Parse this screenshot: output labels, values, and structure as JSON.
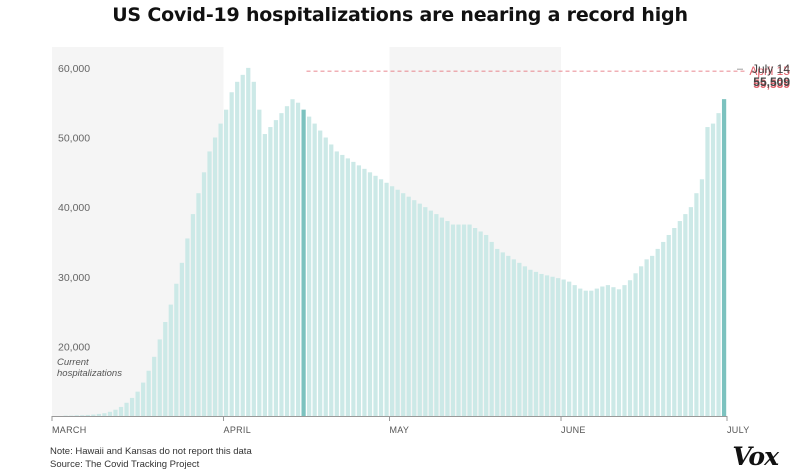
{
  "header": {
    "title": "US Covid-19 hospitalizations are nearing a record high"
  },
  "chart_data": {
    "type": "bar",
    "title": "US Covid-19 hospitalizations are nearing a record high",
    "ylabel": "Current hospitalizations",
    "ylim": [
      10000,
      63000
    ],
    "yticks": [
      20000,
      30000,
      40000,
      50000,
      60000
    ],
    "ytick_labels": [
      "20,000",
      "30,000",
      "40,000",
      "50,000",
      "60,000"
    ],
    "months": [
      "MARCH",
      "APRIL",
      "MAY",
      "JUNE",
      "JULY"
    ],
    "grid": false,
    "start_date": "2020-03-01",
    "values": [
      10000,
      10000,
      10050,
      10050,
      10100,
      10100,
      10150,
      10200,
      10300,
      10400,
      10600,
      10900,
      11300,
      11900,
      12600,
      13500,
      14800,
      16500,
      18500,
      21000,
      23500,
      26000,
      29000,
      32000,
      35500,
      39000,
      42000,
      45000,
      48000,
      50000,
      52000,
      54000,
      56500,
      58000,
      59000,
      60000,
      58000,
      54000,
      50500,
      51500,
      52500,
      53500,
      54500,
      55500,
      55000,
      54000,
      53000,
      52000,
      51000,
      50000,
      49000,
      48000,
      47500,
      47000,
      46500,
      46000,
      45500,
      45000,
      44500,
      44000,
      43500,
      43000,
      42500,
      42000,
      41500,
      41000,
      40500,
      40000,
      39500,
      39000,
      38500,
      38000,
      37500,
      37500,
      37500,
      37500,
      37000,
      36500,
      36000,
      35000,
      34000,
      33500,
      33000,
      32500,
      32000,
      31500,
      31000,
      30700,
      30400,
      30200,
      30000,
      29800,
      29600,
      29300,
      28800,
      28300,
      28000,
      28000,
      28300,
      28600,
      28800,
      28500,
      28200,
      28800,
      29500,
      30500,
      31500,
      32500,
      33000,
      34000,
      35000,
      36000,
      37000,
      38000,
      39000,
      40000,
      42000,
      44000,
      51500,
      52000,
      53500,
      55509
    ],
    "highlights": [
      {
        "label": "April 15",
        "value": "59,539",
        "y": 59539,
        "color": "#e2616c"
      },
      {
        "label": "July 14",
        "value": "55,509",
        "y": 55509,
        "color": "#444444"
      }
    ],
    "bar_color": "#cce9e7",
    "highlight_bar_color": "#7cc2bf",
    "shade_color": "#f5f5f5"
  },
  "footer": {
    "note": "Note: Hawaii and Kansas do not report this data",
    "source": "Source: The Covid Tracking Project"
  },
  "logo": {
    "text": "Vox"
  }
}
